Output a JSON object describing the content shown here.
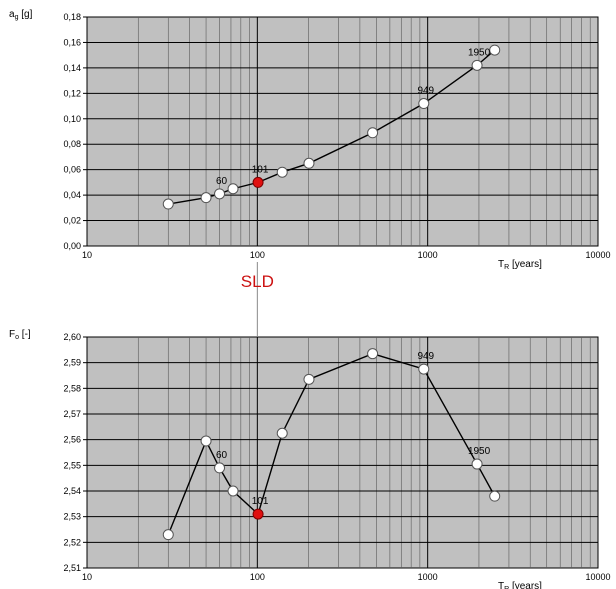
{
  "chart_data": [
    {
      "type": "scatter",
      "xscale": "log",
      "xlim": [
        10,
        10000
      ],
      "ylim": [
        0,
        0.18
      ],
      "ylabel": {
        "main": "a",
        "sub": "g",
        "unit": "[g]"
      },
      "xlabel": {
        "main": "T",
        "sub": "R",
        "unit": "[years]"
      },
      "xticks": [
        "10",
        "100",
        "1000",
        "10000"
      ],
      "yticks": [
        "0,00",
        "0,02",
        "0,04",
        "0,06",
        "0,08",
        "0,10",
        "0,12",
        "0,14",
        "0,16",
        "0,18"
      ],
      "grid": true,
      "series": [
        {
          "x": [
            30,
            50,
            60,
            72,
            101,
            140,
            201,
            475,
            949,
            1950,
            2475
          ],
          "y": [
            0.033,
            0.038,
            0.041,
            0.045,
            0.05,
            0.058,
            0.065,
            0.089,
            0.112,
            0.142,
            0.154
          ]
        }
      ],
      "highlight": {
        "x": 101,
        "y": 0.05,
        "color": "#e01010"
      },
      "annotations": [
        {
          "text": "60",
          "x": 60,
          "y": 0.041
        },
        {
          "text": "101",
          "x": 101,
          "y": 0.05
        },
        {
          "text": "949",
          "x": 949,
          "y": 0.112
        },
        {
          "text": "1950",
          "x": 1950,
          "y": 0.142
        }
      ]
    },
    {
      "type": "scatter",
      "xscale": "log",
      "xlim": [
        10,
        10000
      ],
      "ylim": [
        2.51,
        2.6
      ],
      "ylabel": {
        "main": "F",
        "sub": "o",
        "unit": "[-]"
      },
      "xlabel": {
        "main": "T",
        "sub": "R",
        "unit": "[years]"
      },
      "xticks": [
        "10",
        "100",
        "1000",
        "10000"
      ],
      "yticks": [
        "2,51",
        "2,52",
        "2,53",
        "2,54",
        "2,55",
        "2,56",
        "2,57",
        "2,58",
        "2,59",
        "2,60"
      ],
      "grid": true,
      "series": [
        {
          "x": [
            30,
            50,
            60,
            72,
            101,
            140,
            201,
            475,
            949,
            1950,
            2475
          ],
          "y": [
            2.523,
            2.5595,
            2.549,
            2.54,
            2.531,
            2.5625,
            2.5835,
            2.5935,
            2.5875,
            2.5505,
            2.538
          ]
        }
      ],
      "highlight": {
        "x": 101,
        "y": 2.531,
        "color": "#e01010"
      },
      "annotations": [
        {
          "text": "60",
          "x": 60,
          "y": 2.549
        },
        {
          "text": "101",
          "x": 101,
          "y": 2.531
        },
        {
          "text": "949",
          "x": 949,
          "y": 2.5875
        },
        {
          "text": "1950",
          "x": 1950,
          "y": 2.5505
        }
      ]
    }
  ],
  "marker_label": {
    "text": "SLD",
    "x": 100,
    "color": "#cc1111"
  }
}
